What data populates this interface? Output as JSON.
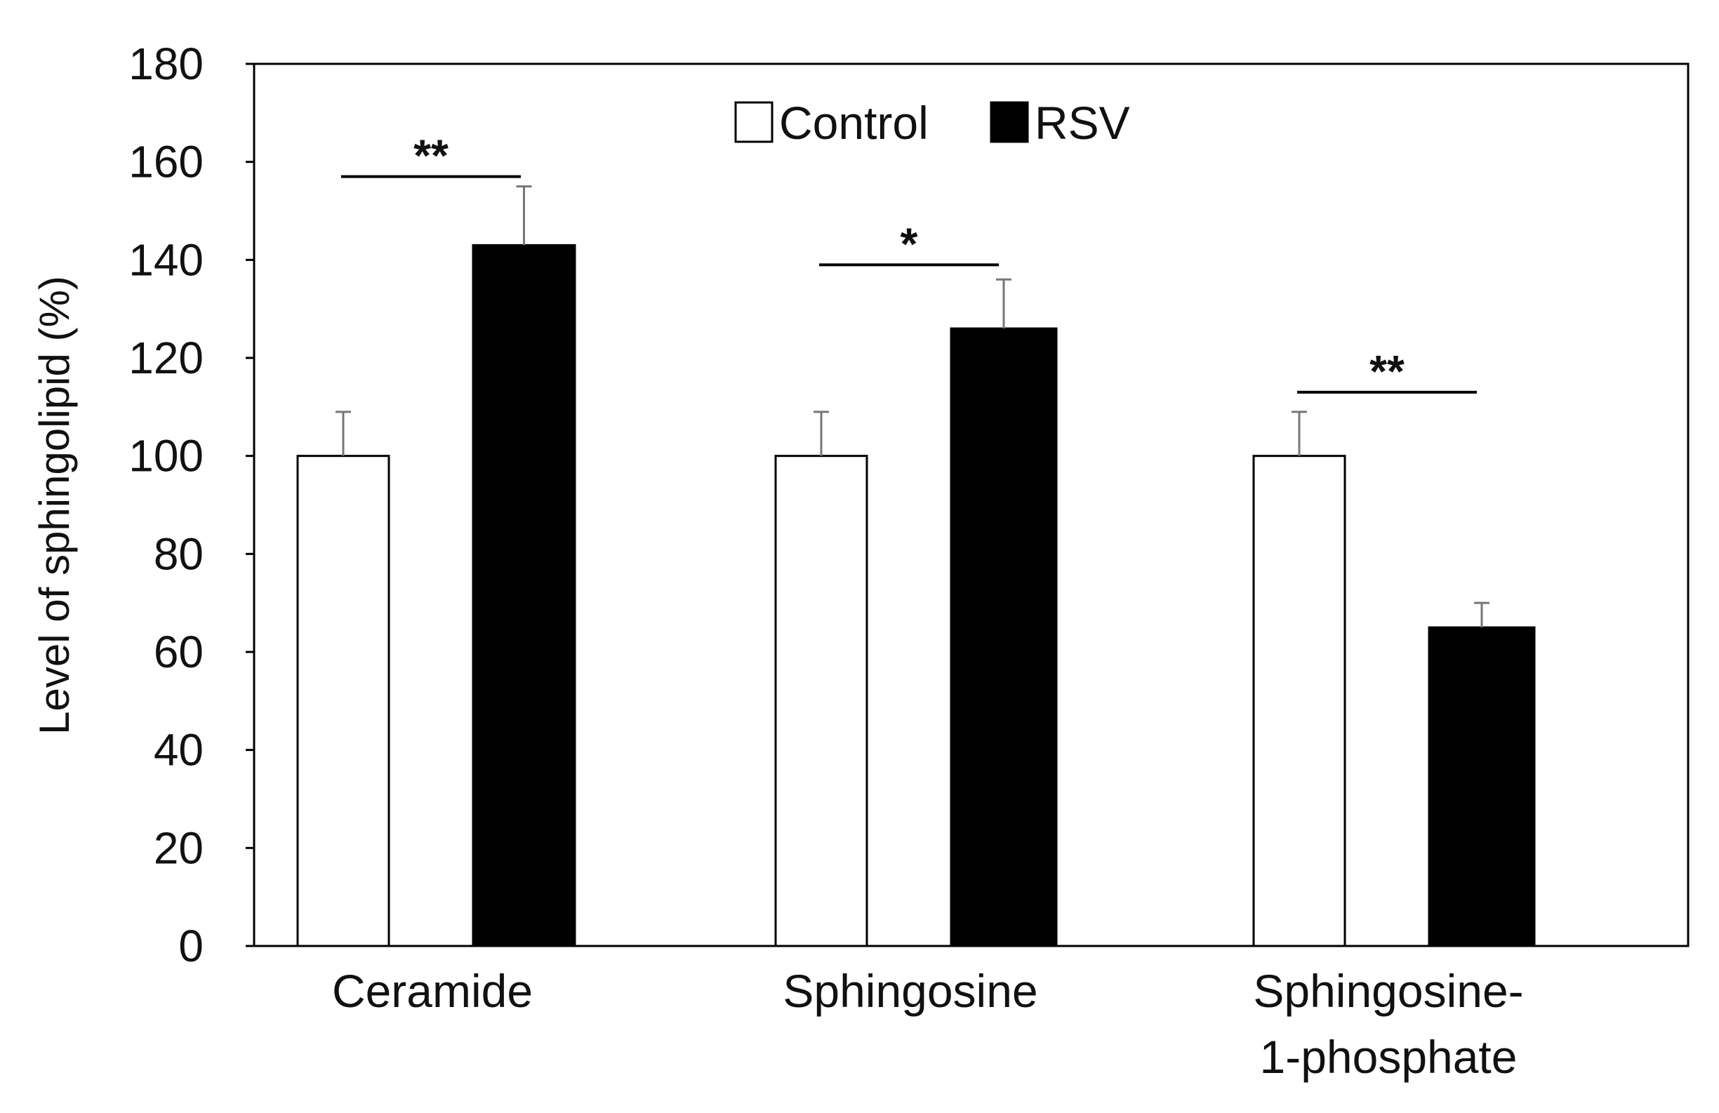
{
  "chart_data": {
    "type": "bar",
    "title": "",
    "xlabel": "",
    "ylabel": "Level of sphingolipid (%)",
    "ylim": [
      0,
      180
    ],
    "yticks": [
      0,
      20,
      40,
      60,
      80,
      100,
      120,
      140,
      160,
      180
    ],
    "grid": false,
    "legend_position": "top-center",
    "categories": [
      {
        "lines": [
          "Ceramide"
        ]
      },
      {
        "lines": [
          "Sphingosine"
        ]
      },
      {
        "lines": [
          "Sphingosine-",
          "1-phosphate"
        ]
      }
    ],
    "series": [
      {
        "name": "Control",
        "fill": "#ffffff",
        "values": [
          100,
          100,
          100
        ],
        "errors": [
          9,
          9,
          9
        ]
      },
      {
        "name": "RSV",
        "fill": "#000000",
        "values": [
          143,
          126,
          65
        ],
        "errors": [
          12,
          10,
          5
        ]
      }
    ],
    "annotations": [
      {
        "category_index": 0,
        "text": "**",
        "y": 157
      },
      {
        "category_index": 1,
        "text": "*",
        "y": 139
      },
      {
        "category_index": 2,
        "text": "**",
        "y": 113
      }
    ]
  }
}
